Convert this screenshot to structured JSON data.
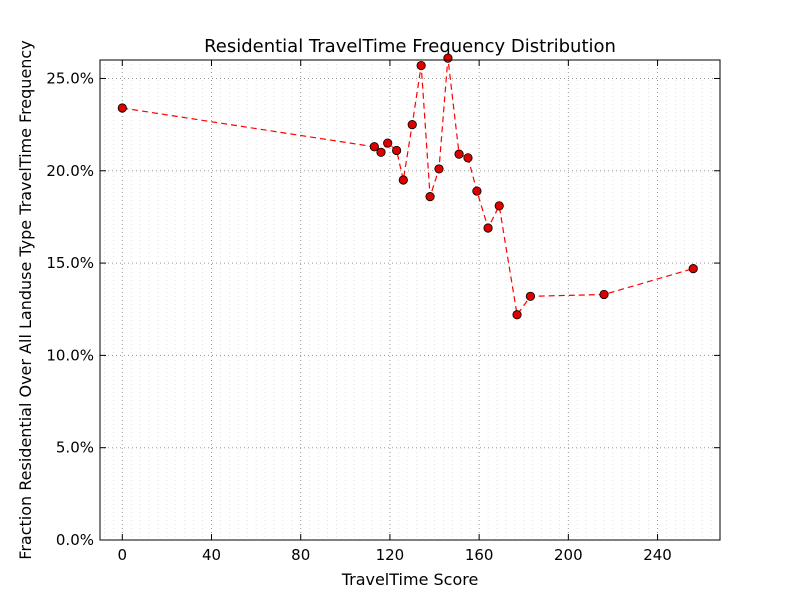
{
  "chart_data": {
    "type": "line",
    "title": "Residential TravelTime Frequency Distribution",
    "xlabel": "TravelTime Score",
    "ylabel": "Fraction Residential Over All Landuse Type TravelTime Frequency",
    "xlim": [
      -10,
      268
    ],
    "ylim": [
      0,
      26
    ],
    "x_ticks": [
      0,
      40,
      80,
      120,
      160,
      200,
      240
    ],
    "x_tick_labels": [
      "0",
      "40",
      "80",
      "120",
      "160",
      "200",
      "240"
    ],
    "y_ticks": [
      0,
      5,
      10,
      15,
      20,
      25
    ],
    "y_tick_labels": [
      "0.0%",
      "5.0%",
      "10.0%",
      "15.0%",
      "20.0%",
      "25.0%"
    ],
    "grid": true,
    "line_style": "dashed",
    "line_color": "#ff0000",
    "marker_color": "#dd0000",
    "series": [
      {
        "x": [
          0,
          113,
          116,
          119,
          123,
          126,
          130,
          134,
          138,
          142,
          146,
          151,
          155,
          159,
          164,
          169,
          177,
          183,
          216,
          256
        ],
        "y": [
          23.4,
          21.3,
          21.0,
          21.5,
          21.1,
          19.5,
          22.5,
          25.7,
          18.6,
          20.1,
          26.1,
          20.9,
          20.7,
          18.9,
          16.9,
          18.1,
          12.2,
          13.2,
          13.3,
          14.7
        ]
      }
    ]
  }
}
